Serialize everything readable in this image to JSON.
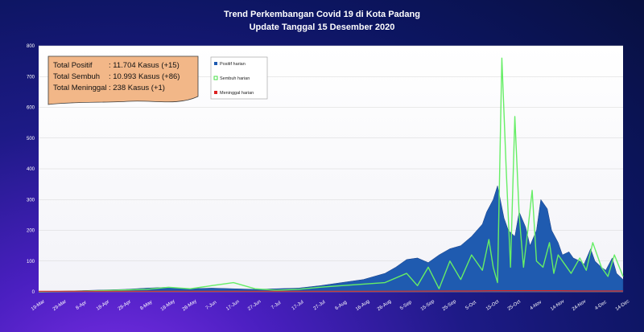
{
  "chart_data": {
    "type": "area",
    "title": "Trend Perkembangan Covid 19 di Kota Padang",
    "subtitle": "Update Tanggal 15 Desember 2020",
    "ylim": [
      0,
      800
    ],
    "y_ticks": [
      0,
      100,
      200,
      300,
      400,
      500,
      600,
      700,
      800
    ],
    "x_labels": [
      "19-Mar",
      "29-Mar",
      "8-Apr",
      "18-Apr",
      "28-Apr",
      "8-May",
      "18-May",
      "28-May",
      "7-Jun",
      "17-Jun",
      "27-Jun",
      "7-Jul",
      "17-Jul",
      "27-Jul",
      "6-Aug",
      "16-Aug",
      "26-Aug",
      "5-Sep",
      "15-Sep",
      "25-Sep",
      "5-Oct",
      "15-Oct",
      "25-Oct",
      "4-Nov",
      "14-Nov",
      "24-Nov",
      "4-Dec",
      "14-Dec"
    ],
    "legend": [
      "Positif harian",
      "Sembuh harian",
      "Meninggal harian"
    ],
    "summary": [
      {
        "label": "Total Positif",
        "value": ": 11.704 Kasus (+15)"
      },
      {
        "label": "Total Sembuh",
        "value": ": 10.993 Kasus (+86)"
      },
      {
        "label": "Total Meninggal",
        "value": ":  238 Kasus (+1)"
      }
    ],
    "series": [
      {
        "name": "Positif harian",
        "color": "#1f5bb0",
        "x": [
          0,
          10,
          20,
          30,
          40,
          50,
          60,
          70,
          80,
          90,
          100,
          110,
          120,
          130,
          140,
          150,
          160,
          165,
          170,
          175,
          180,
          185,
          190,
          195,
          200,
          205,
          207,
          210,
          212,
          215,
          217,
          220,
          222,
          225,
          227,
          230,
          232,
          235,
          237,
          240,
          242,
          245,
          247,
          250,
          252,
          255,
          257,
          260,
          262,
          265,
          267,
          270
        ],
        "values": [
          0,
          2,
          4,
          6,
          8,
          12,
          15,
          10,
          12,
          10,
          8,
          10,
          12,
          20,
          30,
          40,
          60,
          80,
          105,
          110,
          95,
          120,
          140,
          150,
          180,
          220,
          260,
          300,
          345,
          240,
          200,
          180,
          260,
          210,
          150,
          200,
          300,
          270,
          200,
          160,
          120,
          130,
          110,
          100,
          90,
          140,
          100,
          80,
          70,
          110,
          60,
          40
        ]
      },
      {
        "name": "Sembuh harian",
        "color": "#66ee66",
        "x": [
          0,
          10,
          20,
          30,
          40,
          50,
          60,
          70,
          80,
          90,
          100,
          110,
          120,
          130,
          140,
          150,
          160,
          170,
          175,
          180,
          185,
          190,
          195,
          200,
          205,
          208,
          210,
          212,
          214,
          216,
          218,
          220,
          222,
          224,
          226,
          228,
          230,
          233,
          236,
          238,
          240,
          243,
          246,
          250,
          253,
          256,
          260,
          263,
          266,
          270
        ],
        "values": [
          0,
          1,
          2,
          4,
          6,
          8,
          15,
          10,
          20,
          30,
          10,
          5,
          8,
          15,
          20,
          25,
          30,
          60,
          20,
          80,
          10,
          100,
          40,
          120,
          70,
          170,
          80,
          30,
          760,
          400,
          80,
          570,
          250,
          80,
          200,
          330,
          100,
          80,
          160,
          60,
          120,
          90,
          60,
          110,
          70,
          160,
          80,
          50,
          120,
          50
        ]
      },
      {
        "name": "Meninggal harian",
        "color": "#dd2222",
        "x": [
          0,
          50,
          100,
          150,
          190,
          200,
          210,
          220,
          230,
          240,
          250,
          260,
          270
        ],
        "values": [
          0,
          0,
          0,
          0,
          1,
          1,
          2,
          2,
          2,
          2,
          1,
          1,
          1
        ]
      }
    ]
  }
}
